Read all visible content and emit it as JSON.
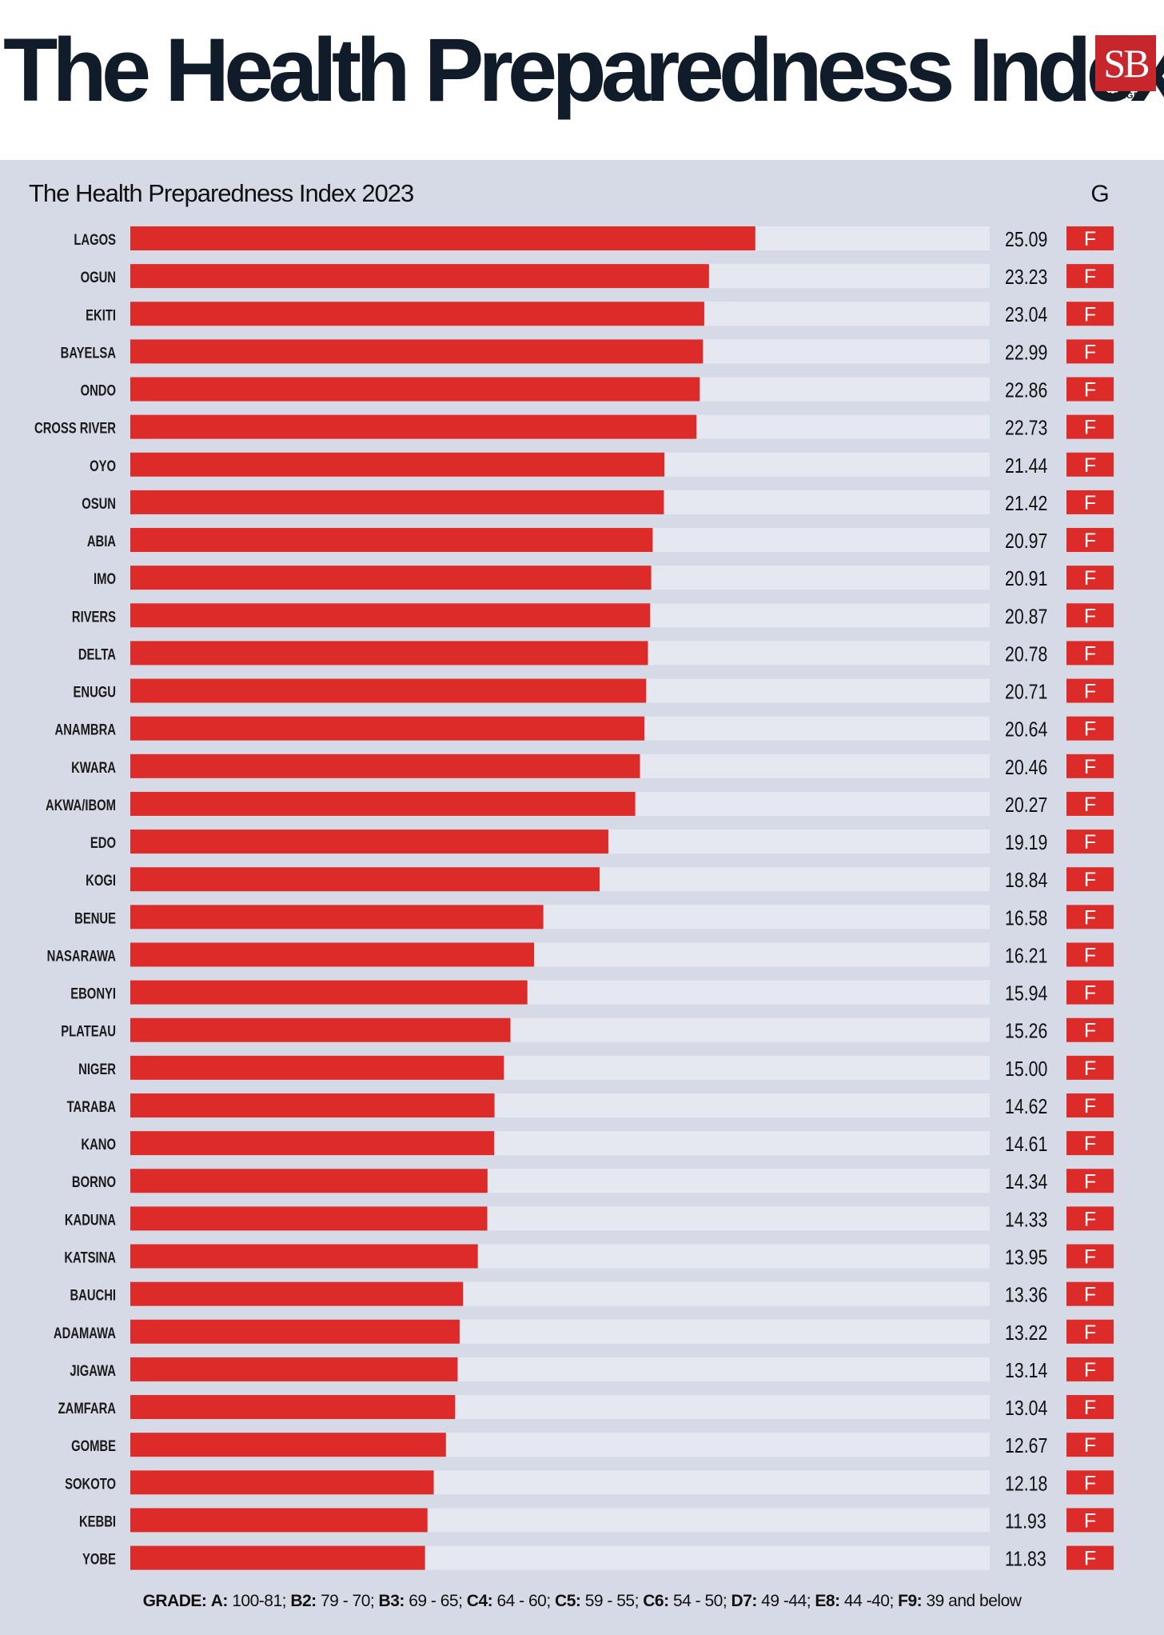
{
  "header": {
    "title": "The Health Preparedness Index",
    "logo_mark": "SB",
    "logo_word": "MORGEN"
  },
  "colors": {
    "bar": "#dc2b28",
    "track": "#e6e8f1",
    "panel": "#d5dae6",
    "grade_box": "#dc2b28",
    "title": "#101c29"
  },
  "chart_data": {
    "type": "bar",
    "orientation": "horizontal",
    "title": "The Health Preparedness Index 2023",
    "grade_column_header": "G",
    "xlim": [
      0,
      34.5
    ],
    "grid": false,
    "categories": [
      "LAGOS",
      "OGUN",
      "EKITI",
      "BAYELSA",
      "ONDO",
      "CROSS RIVER",
      "OYO",
      "OSUN",
      "ABIA",
      "IMO",
      "RIVERS",
      "DELTA",
      "ENUGU",
      "ANAMBRA",
      "KWARA",
      "AKWA/IBOM",
      "EDO",
      "KOGI",
      "BENUE",
      "NASARAWA",
      "EBONYI",
      "PLATEAU",
      "NIGER",
      "TARABA",
      "KANO",
      "BORNO",
      "KADUNA",
      "KATSINA",
      "BAUCHI",
      "ADAMAWA",
      "JIGAWA",
      "ZAMFARA",
      "GOMBE",
      "SOKOTO",
      "KEBBI",
      "YOBE"
    ],
    "values": [
      25.09,
      23.23,
      23.04,
      22.99,
      22.86,
      22.73,
      21.44,
      21.42,
      20.97,
      20.91,
      20.87,
      20.78,
      20.71,
      20.64,
      20.46,
      20.27,
      19.19,
      18.84,
      16.58,
      16.21,
      15.94,
      15.26,
      15.0,
      14.62,
      14.61,
      14.34,
      14.33,
      13.95,
      13.36,
      13.22,
      13.14,
      13.04,
      12.67,
      12.18,
      11.93,
      11.83
    ],
    "value_labels": [
      "25.09",
      "23.23",
      "23.04",
      "22.99",
      "22.86",
      "22.73",
      "21.44",
      "21.42",
      "20.97",
      "20.91",
      "20.87",
      "20.78",
      "20.71",
      "20.64",
      "20.46",
      "20.27",
      "19.19",
      "18.84",
      "16.58",
      "16.21",
      "15.94",
      "15.26",
      "15.00",
      "14.62",
      "14.61",
      "14.34",
      "14.33",
      "13.95",
      "13.36",
      "13.22",
      "13.14",
      "13.04",
      "12.67",
      "12.18",
      "11.93",
      "11.83"
    ],
    "grades": [
      "F",
      "F",
      "F",
      "F",
      "F",
      "F",
      "F",
      "F",
      "F",
      "F",
      "F",
      "F",
      "F",
      "F",
      "F",
      "F",
      "F",
      "F",
      "F",
      "F",
      "F",
      "F",
      "F",
      "F",
      "F",
      "F",
      "F",
      "F",
      "F",
      "F",
      "F",
      "F",
      "F",
      "F",
      "F",
      "F"
    ]
  },
  "legend": {
    "grade_label": "GRADE:",
    "items": [
      {
        "grade": "A:",
        "range": "100-81;"
      },
      {
        "grade": "B2:",
        "range": "79 - 70;"
      },
      {
        "grade": "B3:",
        "range": "69 - 65;"
      },
      {
        "grade": "C4:",
        "range": "64 - 60;"
      },
      {
        "grade": "C5:",
        "range": "59 - 55;"
      },
      {
        "grade": "C6:",
        "range": "54 - 50;"
      },
      {
        "grade": "D7:",
        "range": "49 -44;"
      },
      {
        "grade": "E8:",
        "range": "44 -40;"
      },
      {
        "grade": "F9:",
        "range": "39 and below"
      }
    ]
  }
}
